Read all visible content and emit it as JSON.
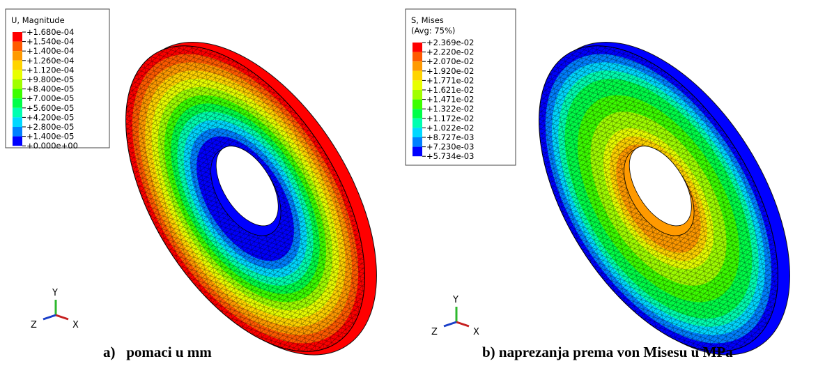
{
  "panels": [
    {
      "legend": {
        "title": [
          "U, Magnitude"
        ],
        "labels": [
          "+1.680e-04",
          "+1.540e-04",
          "+1.400e-04",
          "+1.260e-04",
          "+1.120e-04",
          "+9.800e-05",
          "+8.400e-05",
          "+7.000e-05",
          "+5.600e-05",
          "+4.200e-05",
          "+2.800e-05",
          "+1.400e-05",
          "+0.000e+00"
        ],
        "colors": [
          "#ff0000",
          "#ff5a00",
          "#ff9a00",
          "#ffd400",
          "#e8ff00",
          "#a0ff00",
          "#3cff00",
          "#00ff48",
          "#00ffb0",
          "#00d8ff",
          "#0080ff",
          "#0000ff"
        ]
      },
      "triad": {
        "y": "Y",
        "z": "Z",
        "x": "X"
      },
      "caption": "a)   pomaci u mm"
    },
    {
      "legend": {
        "title": [
          "S, Mises",
          "(Avg: 75%)"
        ],
        "labels": [
          "+2.369e-02",
          "+2.220e-02",
          "+2.070e-02",
          "+1.920e-02",
          "+1.771e-02",
          "+1.621e-02",
          "+1.471e-02",
          "+1.322e-02",
          "+1.172e-02",
          "+1.022e-02",
          "+8.727e-03",
          "+7.230e-03",
          "+5.734e-03"
        ],
        "colors": [
          "#ff0000",
          "#ff5a00",
          "#ff9a00",
          "#ffd400",
          "#e8ff00",
          "#a0ff00",
          "#3cff00",
          "#00ff48",
          "#00ffb0",
          "#00d8ff",
          "#0080ff",
          "#0000ff"
        ]
      },
      "triad": {
        "y": "Y",
        "z": "Z",
        "x": "X"
      },
      "caption": "b) naprezanja prema von Misesu u MPa"
    }
  ]
}
